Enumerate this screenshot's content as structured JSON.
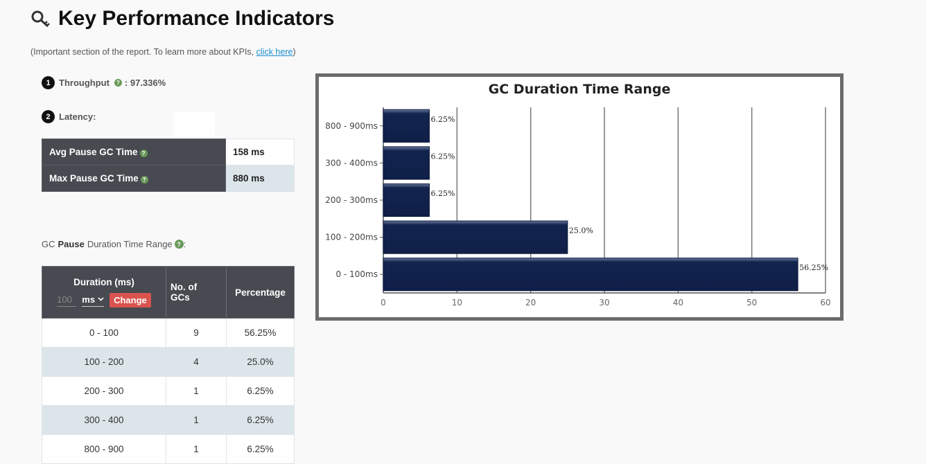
{
  "header": {
    "title": "Key Performance Indicators",
    "icon": "key-icon",
    "intro_text": "(Important section of the report. To learn more about KPIs, ",
    "intro_link": "click here",
    "intro_close": ")"
  },
  "throughput": {
    "badge": "1",
    "label": "Throughput",
    "value": " : 97.336%"
  },
  "latency": {
    "badge": "2",
    "label": "Latency:",
    "rows": [
      {
        "label": "Avg Pause GC Time",
        "value": "158 ms"
      },
      {
        "label": "Max Pause GC Time",
        "value": "880 ms"
      }
    ]
  },
  "range_section": {
    "caption_prefix": "GC",
    "caption_bold": "Pause",
    "caption_suffix": "Duration Time Range",
    "caption_end": ":",
    "columns": {
      "duration": "Duration (ms)",
      "count_line1": "No. of",
      "count_line2": "GCs",
      "percentage": "Percentage"
    },
    "duration_input_placeholder": "100",
    "unit_selected": "ms",
    "change_label": "Change",
    "rows": [
      {
        "range": "0 - 100",
        "count": "9",
        "pct": "56.25%"
      },
      {
        "range": "100 - 200",
        "count": "4",
        "pct": "25.0%"
      },
      {
        "range": "200 - 300",
        "count": "1",
        "pct": "6.25%"
      },
      {
        "range": "300 - 400",
        "count": "1",
        "pct": "6.25%"
      },
      {
        "range": "800 - 900",
        "count": "1",
        "pct": "6.25%"
      }
    ]
  },
  "chart_data": {
    "type": "bar",
    "orientation": "horizontal",
    "title": "GC Duration Time Range",
    "categories": [
      "800 - 900ms",
      "300 - 400ms",
      "200 - 300ms",
      "100 - 200ms",
      "0 - 100ms"
    ],
    "values": [
      6.25,
      6.25,
      6.25,
      25.0,
      56.25
    ],
    "data_labels": [
      "6.25%",
      "6.25%",
      "6.25%",
      "25.0%",
      "56.25%"
    ],
    "xlim": [
      0,
      60
    ],
    "xticks": [
      "0",
      "10",
      "20",
      "30",
      "40",
      "50",
      "60"
    ],
    "grid": true,
    "bar_color": "#13244f"
  }
}
